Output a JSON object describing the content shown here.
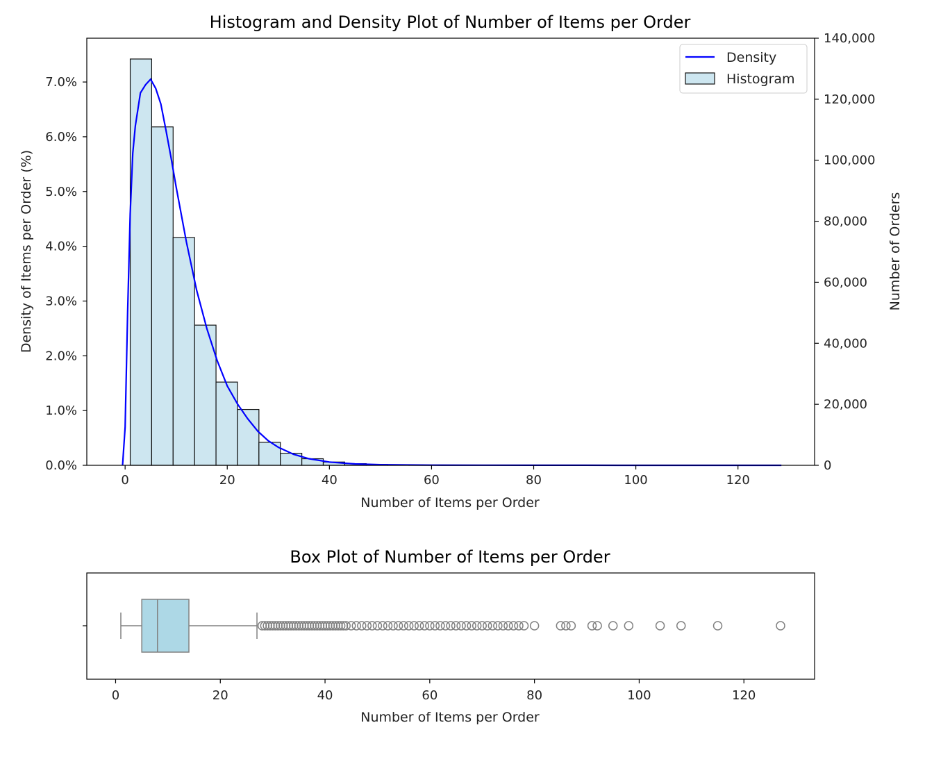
{
  "chart_data": [
    {
      "type": "bar",
      "title": "Histogram and Density Plot of Number of Items per Order",
      "xlabel": "Number of Items per Order",
      "ylabel": "Density of Items per Order (%)",
      "ylabel_right": "Number of Orders",
      "xlim": [
        -7.5,
        135
      ],
      "ylim": [
        0,
        7.8
      ],
      "ylim_right": [
        0,
        140000
      ],
      "x_ticks": [
        0,
        20,
        40,
        60,
        80,
        100,
        120
      ],
      "y_ticks": [
        0,
        1,
        2,
        3,
        4,
        5,
        6,
        7
      ],
      "y_tick_labels": [
        "0.0%",
        "1.0%",
        "2.0%",
        "3.0%",
        "4.0%",
        "5.0%",
        "6.0%",
        "7.0%"
      ],
      "y_ticks_right": [
        0,
        20000,
        40000,
        60000,
        80000,
        100000,
        120000,
        140000
      ],
      "y_tick_labels_right": [
        "0",
        "20,000",
        "40,000",
        "60,000",
        "80,000",
        "100,000",
        "120,000",
        "140,000"
      ],
      "legend": [
        "Density",
        "Histogram"
      ],
      "legend_position": "top-right",
      "histogram": {
        "name": "Histogram",
        "bin_edges": [
          1,
          5.2,
          9.4,
          13.6,
          17.8,
          22,
          26.2,
          30.4,
          34.6,
          38.8,
          43,
          47.2,
          51.4,
          55.6,
          59.8
        ],
        "values": [
          7.42,
          6.18,
          4.16,
          2.56,
          1.52,
          1.02,
          0.42,
          0.22,
          0.12,
          0.06,
          0.03,
          0.015,
          0.008,
          0.004
        ],
        "color": "#cde6f0",
        "edge_color": "#111111"
      },
      "density": {
        "name": "Density",
        "x": [
          -0.5,
          0,
          0.5,
          1,
          1.5,
          2,
          3,
          4,
          5,
          6,
          7,
          8,
          9,
          10,
          12,
          14,
          16,
          18,
          20,
          22,
          24,
          26,
          28,
          30,
          33,
          36,
          40,
          45,
          50,
          60,
          70,
          80,
          90,
          100,
          110,
          120,
          128.5
        ],
        "y": [
          0.0,
          0.7,
          2.8,
          4.6,
          5.7,
          6.2,
          6.8,
          6.95,
          7.05,
          6.88,
          6.6,
          6.12,
          5.62,
          5.08,
          4.08,
          3.2,
          2.5,
          1.92,
          1.45,
          1.12,
          0.85,
          0.62,
          0.45,
          0.33,
          0.2,
          0.12,
          0.06,
          0.025,
          0.012,
          0.004,
          0.002,
          0.001,
          0.001,
          0.0,
          0.0,
          0.0,
          0.0
        ],
        "color": "#0000ff"
      }
    },
    {
      "type": "box",
      "title": "Box Plot of Number of Items per Order",
      "xlabel": "Number of Items per Order",
      "xlim": [
        -5.5,
        133.5
      ],
      "x_ticks": [
        0,
        20,
        40,
        60,
        80,
        100,
        120
      ],
      "box": {
        "whisker_low": 1,
        "q1": 5,
        "median": 8,
        "q3": 14,
        "whisker_high": 27,
        "fill": "#add8e6",
        "edge_color": "#808080"
      },
      "outliers": [
        28,
        28.5,
        29,
        29.5,
        30,
        30.5,
        31,
        31.5,
        32,
        32.5,
        33,
        33.5,
        34,
        34.5,
        35,
        35.5,
        36,
        36.5,
        37,
        37.5,
        38,
        38.5,
        39,
        39.5,
        40,
        40.5,
        41,
        41.5,
        42,
        42.5,
        43,
        43.5,
        44,
        45,
        46,
        47,
        48,
        49,
        50,
        51,
        52,
        53,
        54,
        55,
        56,
        57,
        58,
        59,
        60,
        61,
        62,
        63,
        64,
        65,
        66,
        67,
        68,
        69,
        70,
        71,
        72,
        73,
        74,
        75,
        76,
        77,
        78,
        80,
        85,
        86,
        87,
        91,
        92,
        95,
        98,
        104,
        108,
        115,
        127
      ]
    }
  ]
}
